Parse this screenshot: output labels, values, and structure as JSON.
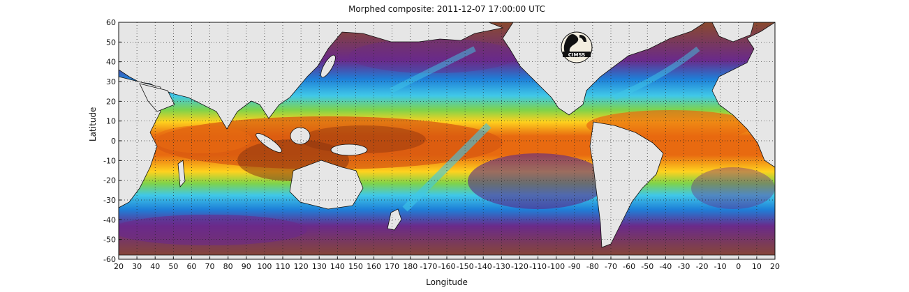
{
  "title": "Morphed composite: 2011-12-07 17:00:00 UTC",
  "xlabel": "Longitude",
  "ylabel": "Latitude",
  "x_ticks": [
    "20",
    "30",
    "40",
    "50",
    "60",
    "70",
    "80",
    "90",
    "100",
    "110",
    "120",
    "130",
    "140",
    "150",
    "160",
    "170",
    "180",
    "-170",
    "-160",
    "-150",
    "-140",
    "-130",
    "-120",
    "-110",
    "-100",
    "-90",
    "-80",
    "-70",
    "-60",
    "-50",
    "-40",
    "-30",
    "-20",
    "-10",
    "0",
    "10",
    "20"
  ],
  "y_ticks": [
    "60",
    "50",
    "40",
    "30",
    "20",
    "10",
    "0",
    "-10",
    "-20",
    "-30",
    "-40",
    "-50",
    "-60"
  ],
  "logo": {
    "text": "CIMSS"
  },
  "colors": {
    "low": "#8a4a2e",
    "dry": "#6a2a8a",
    "mid": "#1e7fd8",
    "moist_light": "#40c8e8",
    "moist": "#7fd34a",
    "wet": "#ffd21e",
    "very_wet": "#e86a10",
    "saturated": "#8b3410",
    "land": "#e6e6e6",
    "grid": "#222222"
  }
}
